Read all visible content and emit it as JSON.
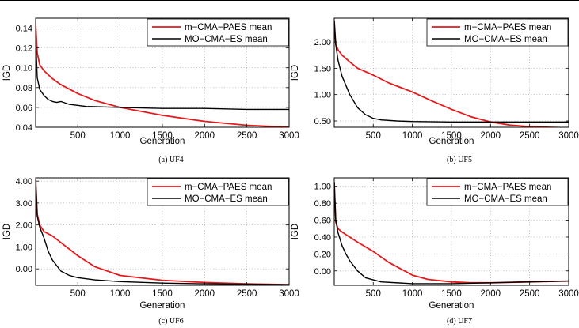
{
  "colors": {
    "red": "#e41a1c",
    "black": "#000000",
    "grid": "#9a9a9a"
  },
  "chart_data": [
    {
      "type": "line",
      "caption": "(a) UF4",
      "xlabel": "Generation",
      "ylabel": "IGD",
      "xlim": [
        1,
        3000
      ],
      "ylim": [
        0.04,
        0.15
      ],
      "xticks": [
        500,
        1000,
        1500,
        2000,
        2500,
        3000
      ],
      "xtick_labels": [
        "500",
        "1000",
        "1500",
        "2000",
        "2500",
        "3000"
      ],
      "yticks": [
        0.04,
        0.06,
        0.08,
        0.1,
        0.12,
        0.14
      ],
      "ytick_labels": [
        "0.04",
        "0.06",
        "0.08",
        "0.10",
        "0.12",
        "0.14"
      ],
      "grid": true,
      "legend_position": "top-right",
      "series": [
        {
          "name": "m−CMA−PAES mean",
          "color": "#e41a1c",
          "x": [
            1,
            20,
            50,
            100,
            200,
            300,
            500,
            700,
            1000,
            1500,
            2000,
            2500,
            3000
          ],
          "y": [
            0.145,
            0.115,
            0.103,
            0.097,
            0.089,
            0.083,
            0.074,
            0.067,
            0.06,
            0.052,
            0.046,
            0.042,
            0.04
          ]
        },
        {
          "name": "MO−CMA−ES mean",
          "color": "#000000",
          "x": [
            1,
            20,
            50,
            100,
            150,
            200,
            250,
            300,
            400,
            600,
            1000,
            1500,
            2000,
            2500,
            3000
          ],
          "y": [
            0.13,
            0.09,
            0.078,
            0.072,
            0.068,
            0.066,
            0.065,
            0.066,
            0.063,
            0.061,
            0.06,
            0.059,
            0.059,
            0.058,
            0.058
          ]
        }
      ]
    },
    {
      "type": "line",
      "caption": "(b) UF5",
      "xlabel": "Generation",
      "ylabel": "IGD",
      "xlim": [
        1,
        3000
      ],
      "ylim": [
        0.38,
        2.45
      ],
      "xticks": [
        500,
        1000,
        1500,
        2000,
        2500,
        3000
      ],
      "xtick_labels": [
        "500",
        "1000",
        "1500",
        "2000",
        "2500",
        "3000"
      ],
      "yticks": [
        0.5,
        1.0,
        1.5,
        2.0
      ],
      "ytick_labels": [
        "0.50",
        "1.00",
        "1.50",
        "2.00"
      ],
      "grid": true,
      "legend_position": "top-right",
      "series": [
        {
          "name": "m−CMA−PAES mean",
          "color": "#e41a1c",
          "x": [
            1,
            20,
            50,
            100,
            200,
            300,
            500,
            700,
            1000,
            1250,
            1500,
            1750,
            2000,
            2250,
            2500,
            2750,
            3000
          ],
          "y": [
            2.4,
            1.95,
            1.85,
            1.75,
            1.62,
            1.5,
            1.37,
            1.22,
            1.05,
            0.88,
            0.72,
            0.58,
            0.48,
            0.42,
            0.39,
            0.38,
            0.37
          ]
        },
        {
          "name": "MO−CMA−ES mean",
          "color": "#000000",
          "x": [
            1,
            20,
            50,
            100,
            200,
            300,
            400,
            500,
            600,
            800,
            1000,
            1500,
            2000,
            3000
          ],
          "y": [
            2.4,
            1.95,
            1.65,
            1.35,
            1.0,
            0.75,
            0.62,
            0.55,
            0.52,
            0.5,
            0.49,
            0.48,
            0.48,
            0.48
          ]
        }
      ]
    },
    {
      "type": "line",
      "caption": "(c) UF6",
      "xlabel": "Generation",
      "ylabel": "IGD",
      "xlim": [
        1,
        3000
      ],
      "ylim": [
        -0.75,
        4.15
      ],
      "xticks": [
        500,
        1000,
        1500,
        2000,
        2500,
        3000
      ],
      "xtick_labels": [
        "500",
        "1000",
        "1500",
        "2000",
        "2500",
        "3000"
      ],
      "yticks": [
        0,
        1,
        2,
        3,
        4
      ],
      "ytick_labels": [
        "0.00",
        "1.00",
        "2.00",
        "3.00",
        "4.00"
      ],
      "grid": true,
      "legend_position": "top-right",
      "series": [
        {
          "name": "m−CMA−PAES mean",
          "color": "#e41a1c",
          "x": [
            1,
            20,
            50,
            100,
            200,
            300,
            500,
            700,
            1000,
            1500,
            2000,
            2500,
            3000
          ],
          "y": [
            4.1,
            2.5,
            2.0,
            1.7,
            1.5,
            1.2,
            0.6,
            0.1,
            -0.3,
            -0.52,
            -0.62,
            -0.68,
            -0.72
          ]
        },
        {
          "name": "MO−CMA−ES mean",
          "color": "#000000",
          "x": [
            1,
            20,
            50,
            100,
            150,
            200,
            300,
            400,
            500,
            700,
            1000,
            1500,
            2000,
            2500,
            3000
          ],
          "y": [
            4.1,
            2.4,
            1.9,
            1.4,
            0.8,
            0.4,
            -0.1,
            -0.3,
            -0.4,
            -0.5,
            -0.58,
            -0.65,
            -0.68,
            -0.7,
            -0.72
          ]
        }
      ]
    },
    {
      "type": "line",
      "caption": "(d) UF7",
      "xlabel": "Generation",
      "ylabel": "IGD",
      "xlim": [
        1,
        3000
      ],
      "ylim": [
        -0.17,
        1.1
      ],
      "xticks": [
        500,
        1000,
        1500,
        2000,
        2500,
        3000
      ],
      "xtick_labels": [
        "500",
        "1000",
        "1500",
        "2000",
        "2500",
        "3000"
      ],
      "yticks": [
        0.0,
        0.2,
        0.4,
        0.6,
        0.8,
        1.0
      ],
      "ytick_labels": [
        "0.00",
        "0.20",
        "0.40",
        "0.60",
        "0.80",
        "1.00"
      ],
      "grid": true,
      "legend_position": "top-right",
      "series": [
        {
          "name": "m−CMA−PAES mean",
          "color": "#e41a1c",
          "x": [
            1,
            20,
            50,
            100,
            200,
            300,
            500,
            700,
            1000,
            1200,
            1500,
            1750,
            2000,
            2500,
            3000
          ],
          "y": [
            1.05,
            0.58,
            0.5,
            0.46,
            0.4,
            0.34,
            0.23,
            0.1,
            -0.05,
            -0.1,
            -0.13,
            -0.14,
            -0.14,
            -0.13,
            -0.12
          ]
        },
        {
          "name": "MO−CMA−ES mean",
          "color": "#000000",
          "x": [
            1,
            20,
            50,
            100,
            150,
            200,
            300,
            400,
            600,
            1000,
            1500,
            2000,
            2500,
            3000
          ],
          "y": [
            1.05,
            0.6,
            0.45,
            0.3,
            0.2,
            0.12,
            0.0,
            -0.08,
            -0.13,
            -0.15,
            -0.15,
            -0.14,
            -0.13,
            -0.12
          ]
        }
      ]
    }
  ]
}
